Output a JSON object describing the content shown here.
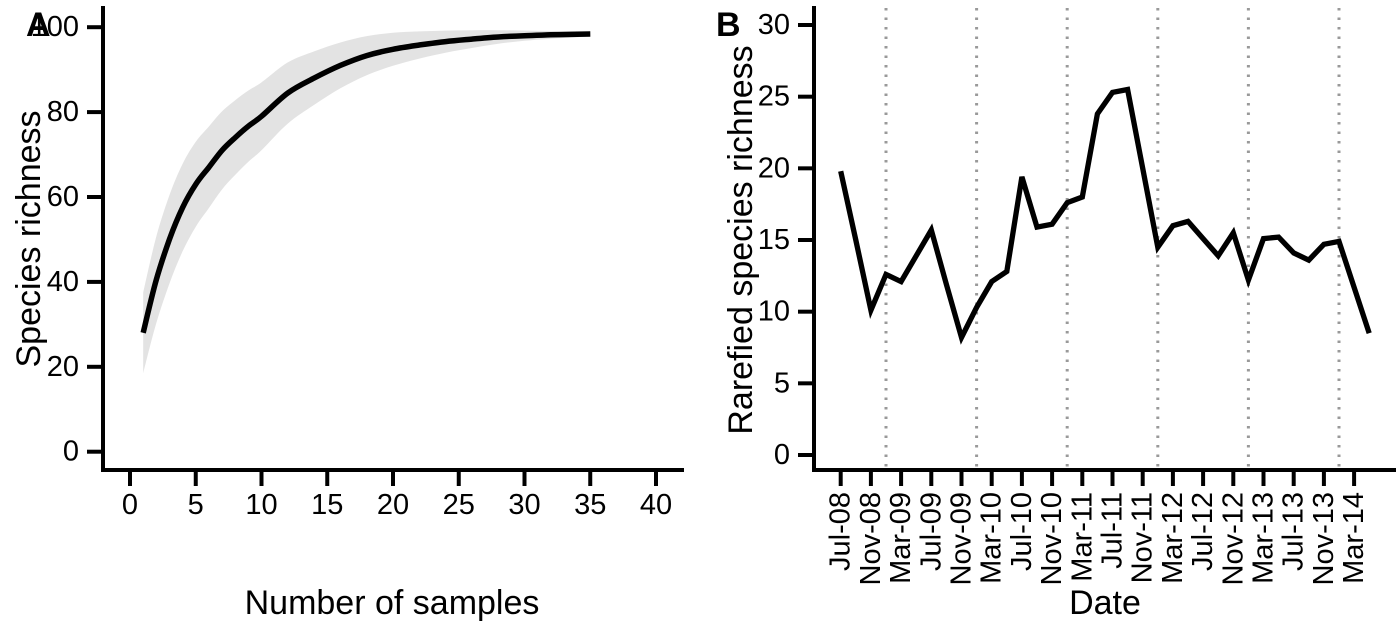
{
  "figure": {
    "background": "#ffffff",
    "panel_letters": [
      "A",
      "B"
    ]
  },
  "chart_data": [
    {
      "type": "line",
      "panel_label": "A",
      "xlabel": "Number of samples",
      "ylabel": "Species richness",
      "x_ticks": [
        0,
        5,
        10,
        15,
        20,
        25,
        30,
        35,
        40
      ],
      "y_ticks": [
        0,
        20,
        40,
        60,
        80,
        100
      ],
      "xlim": [
        0,
        42
      ],
      "ylim": [
        0,
        103
      ],
      "grid": false,
      "line_color": "#000000",
      "ribbon": {
        "name": "confidence-band",
        "color": "#e3e3e3",
        "x": [
          1,
          2,
          3,
          4,
          5,
          6,
          7,
          8,
          9,
          10,
          12,
          14,
          16,
          18,
          20,
          22,
          24,
          26,
          28,
          30,
          32,
          34,
          35
        ],
        "upper": [
          37.5,
          50.7,
          60.4,
          67.8,
          73,
          76.6,
          80.2,
          82.8,
          85.1,
          87,
          91.7,
          94.3,
          96.4,
          97.9,
          98.7,
          99,
          99.2,
          99.3,
          99.3,
          99.2,
          99.1,
          99.05,
          99
        ],
        "lower": [
          18.5,
          30.3,
          39.6,
          47.2,
          53,
          57.4,
          61.8,
          65.2,
          68.3,
          71,
          77.3,
          81.7,
          85.6,
          88.7,
          90.9,
          92.6,
          94,
          95.1,
          96.1,
          96.8,
          97.3,
          97.65,
          97.8
        ]
      },
      "series": [
        {
          "name": "species-accumulation-mean",
          "x": [
            1,
            2,
            3,
            4,
            5,
            6,
            7,
            8,
            9,
            10,
            12,
            14,
            16,
            18,
            20,
            22,
            24,
            26,
            28,
            30,
            32,
            34,
            35
          ],
          "y": [
            28,
            40.5,
            50,
            57.5,
            63,
            67,
            71,
            74,
            76.7,
            79,
            84.5,
            88,
            91,
            93.3,
            94.8,
            95.8,
            96.6,
            97.2,
            97.7,
            98,
            98.2,
            98.35,
            98.4
          ]
        }
      ]
    },
    {
      "type": "line",
      "panel_label": "B",
      "xlabel": "Date",
      "ylabel": "Rarefied species richness",
      "y_ticks": [
        0,
        5,
        10,
        15,
        20,
        25,
        30
      ],
      "ylim": [
        0,
        31
      ],
      "grid": false,
      "line_color": "#000000",
      "categories": [
        "Jul-08",
        "Sep-08",
        "Nov-08",
        "Jan-09",
        "Mar-09",
        "May-09",
        "Jul-09",
        "Sep-09",
        "Nov-09",
        "Jan-10",
        "Mar-10",
        "May-10",
        "Jul-10",
        "Sep-10",
        "Nov-10",
        "Jan-11",
        "Mar-11",
        "May-11",
        "Jul-11",
        "Sep-11",
        "Nov-11",
        "Jan-12",
        "Mar-12",
        "May-12",
        "Jul-12",
        "Sep-12",
        "Nov-12",
        "Jan-13",
        "Mar-13",
        "May-13",
        "Jul-13",
        "Sep-13",
        "Nov-13",
        "Jan-14",
        "Mar-14",
        "May-14"
      ],
      "values": [
        19.8,
        15.0,
        10.1,
        12.6,
        12.1,
        13.9,
        15.7,
        11.9,
        8.2,
        10.3,
        12.1,
        12.8,
        19.4,
        15.9,
        16.1,
        17.6,
        18.0,
        23.8,
        25.3,
        25.5,
        20.0,
        14.5,
        16.0,
        16.3,
        15.1,
        13.9,
        15.5,
        12.2,
        15.1,
        15.2,
        14.1,
        13.6,
        14.7,
        14.9,
        11.7,
        8.5
      ],
      "x_tick_labels": [
        "Jul-08",
        "Nov-08",
        "Mar-09",
        "Jul-09",
        "Nov-09",
        "Mar-10",
        "Jul-10",
        "Nov-10",
        "Mar-11",
        "Jul-11",
        "Nov-11",
        "Mar-12",
        "Jul-12",
        "Nov-12",
        "Mar-13",
        "Jul-13",
        "Nov-13",
        "Mar-14"
      ],
      "gridlines": {
        "style": "dotted",
        "color": "#999999",
        "at_categories": [
          "Jan-09",
          "Jan-10",
          "Jan-11",
          "Jan-12",
          "Jan-13",
          "Jan-14"
        ]
      }
    }
  ]
}
